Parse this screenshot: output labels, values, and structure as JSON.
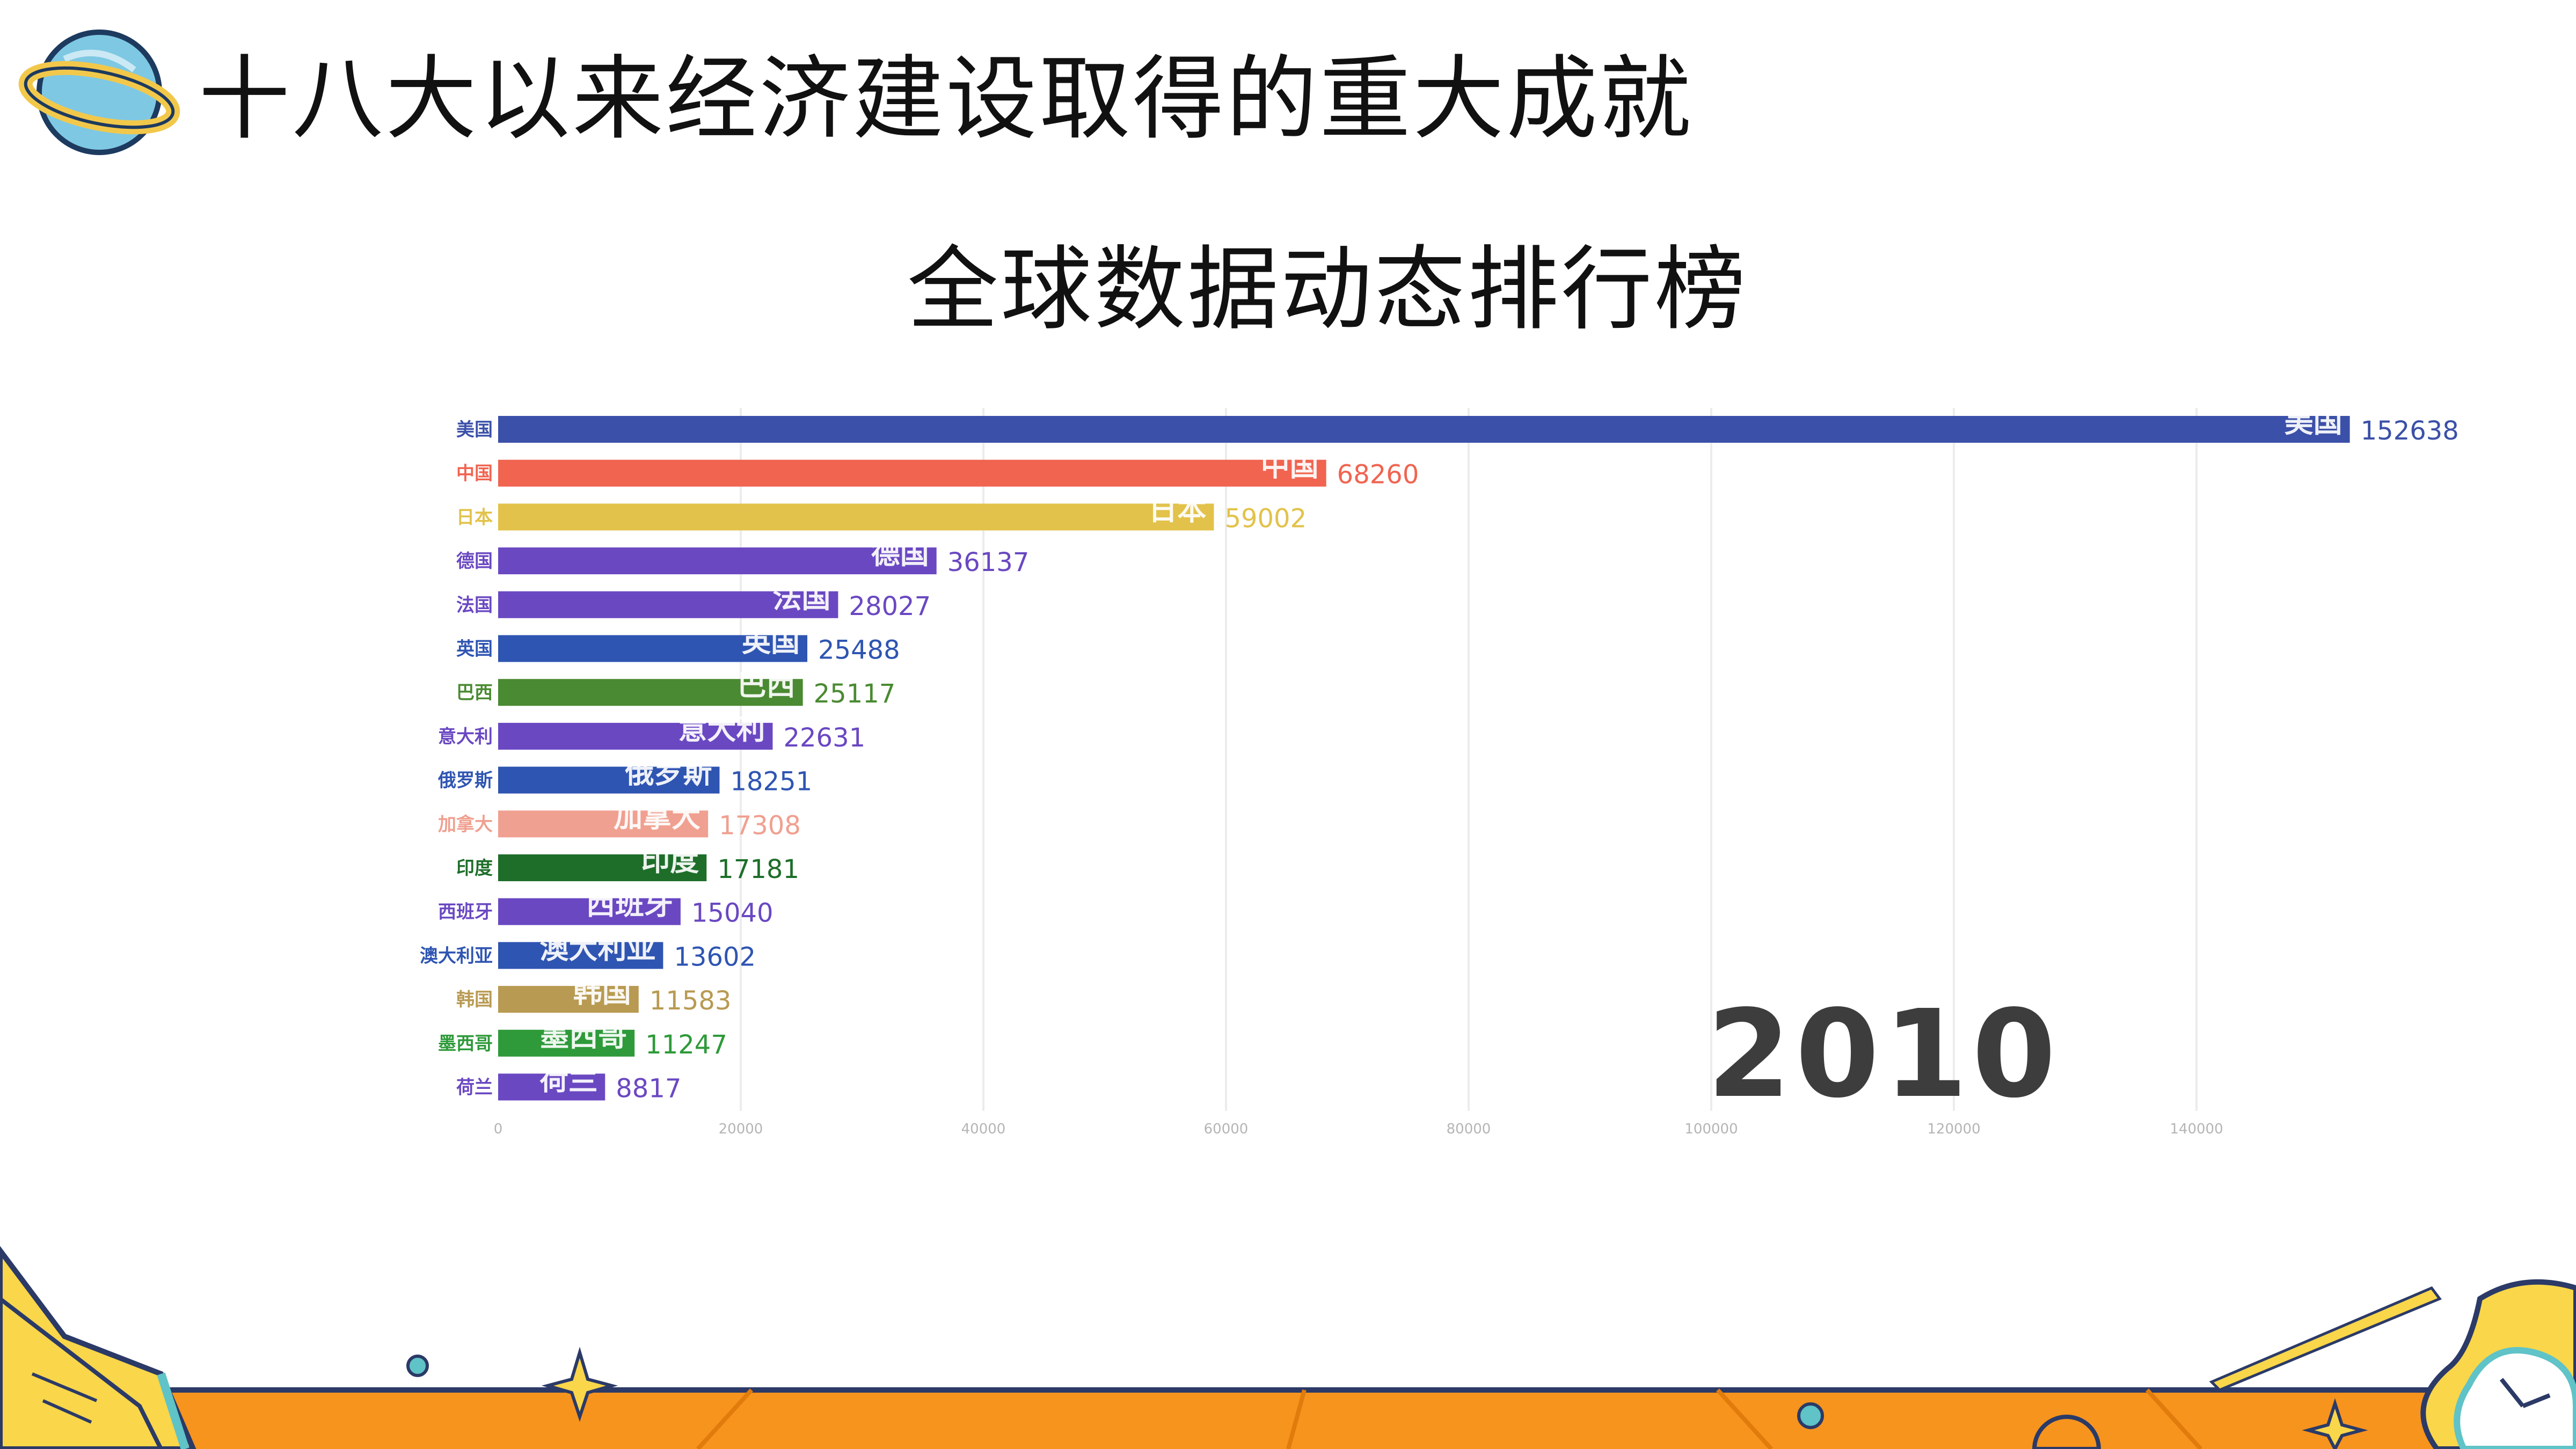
{
  "page": {
    "title": "十八大以来经济建设取得的重大成就",
    "chart_title": "全球数据动态排行榜"
  },
  "chart_data": {
    "type": "bar",
    "orientation": "horizontal",
    "title": "全球数据动态排行榜",
    "period_label": "2010",
    "categories": [
      "美国",
      "中国",
      "日本",
      "德国",
      "法国",
      "英国",
      "巴西",
      "意大利",
      "俄罗斯",
      "加拿大",
      "印度",
      "西班牙",
      "澳大利亚",
      "韩国",
      "墨西哥",
      "荷兰"
    ],
    "values": [
      152638,
      68260,
      59002,
      36137,
      28027,
      25488,
      25117,
      22631,
      18251,
      17308,
      17181,
      15040,
      13602,
      11583,
      11247,
      8817
    ],
    "colors": [
      "#3b50a8",
      "#f06450",
      "#e2c24a",
      "#6a48c2",
      "#6a48c2",
      "#2f55b2",
      "#4a8a32",
      "#6a48c2",
      "#2f55b2",
      "#f0a090",
      "#1e6e2a",
      "#6a48c2",
      "#2f55b2",
      "#b89a52",
      "#2e9a3a",
      "#6a48c2"
    ],
    "xlim": [
      0,
      160000
    ],
    "xticks": [
      0,
      20000,
      40000,
      60000,
      80000,
      100000,
      120000,
      140000
    ],
    "grid": true
  },
  "decor": {
    "orange": "#f7941d",
    "yellow": "#f9d64a",
    "teal": "#5fc3c7",
    "blue": "#7ec8e3",
    "icons": [
      "planet-icon",
      "open-book-icon",
      "sparkle-icon",
      "clock-icon",
      "comet-icon",
      "ball-icon"
    ]
  }
}
